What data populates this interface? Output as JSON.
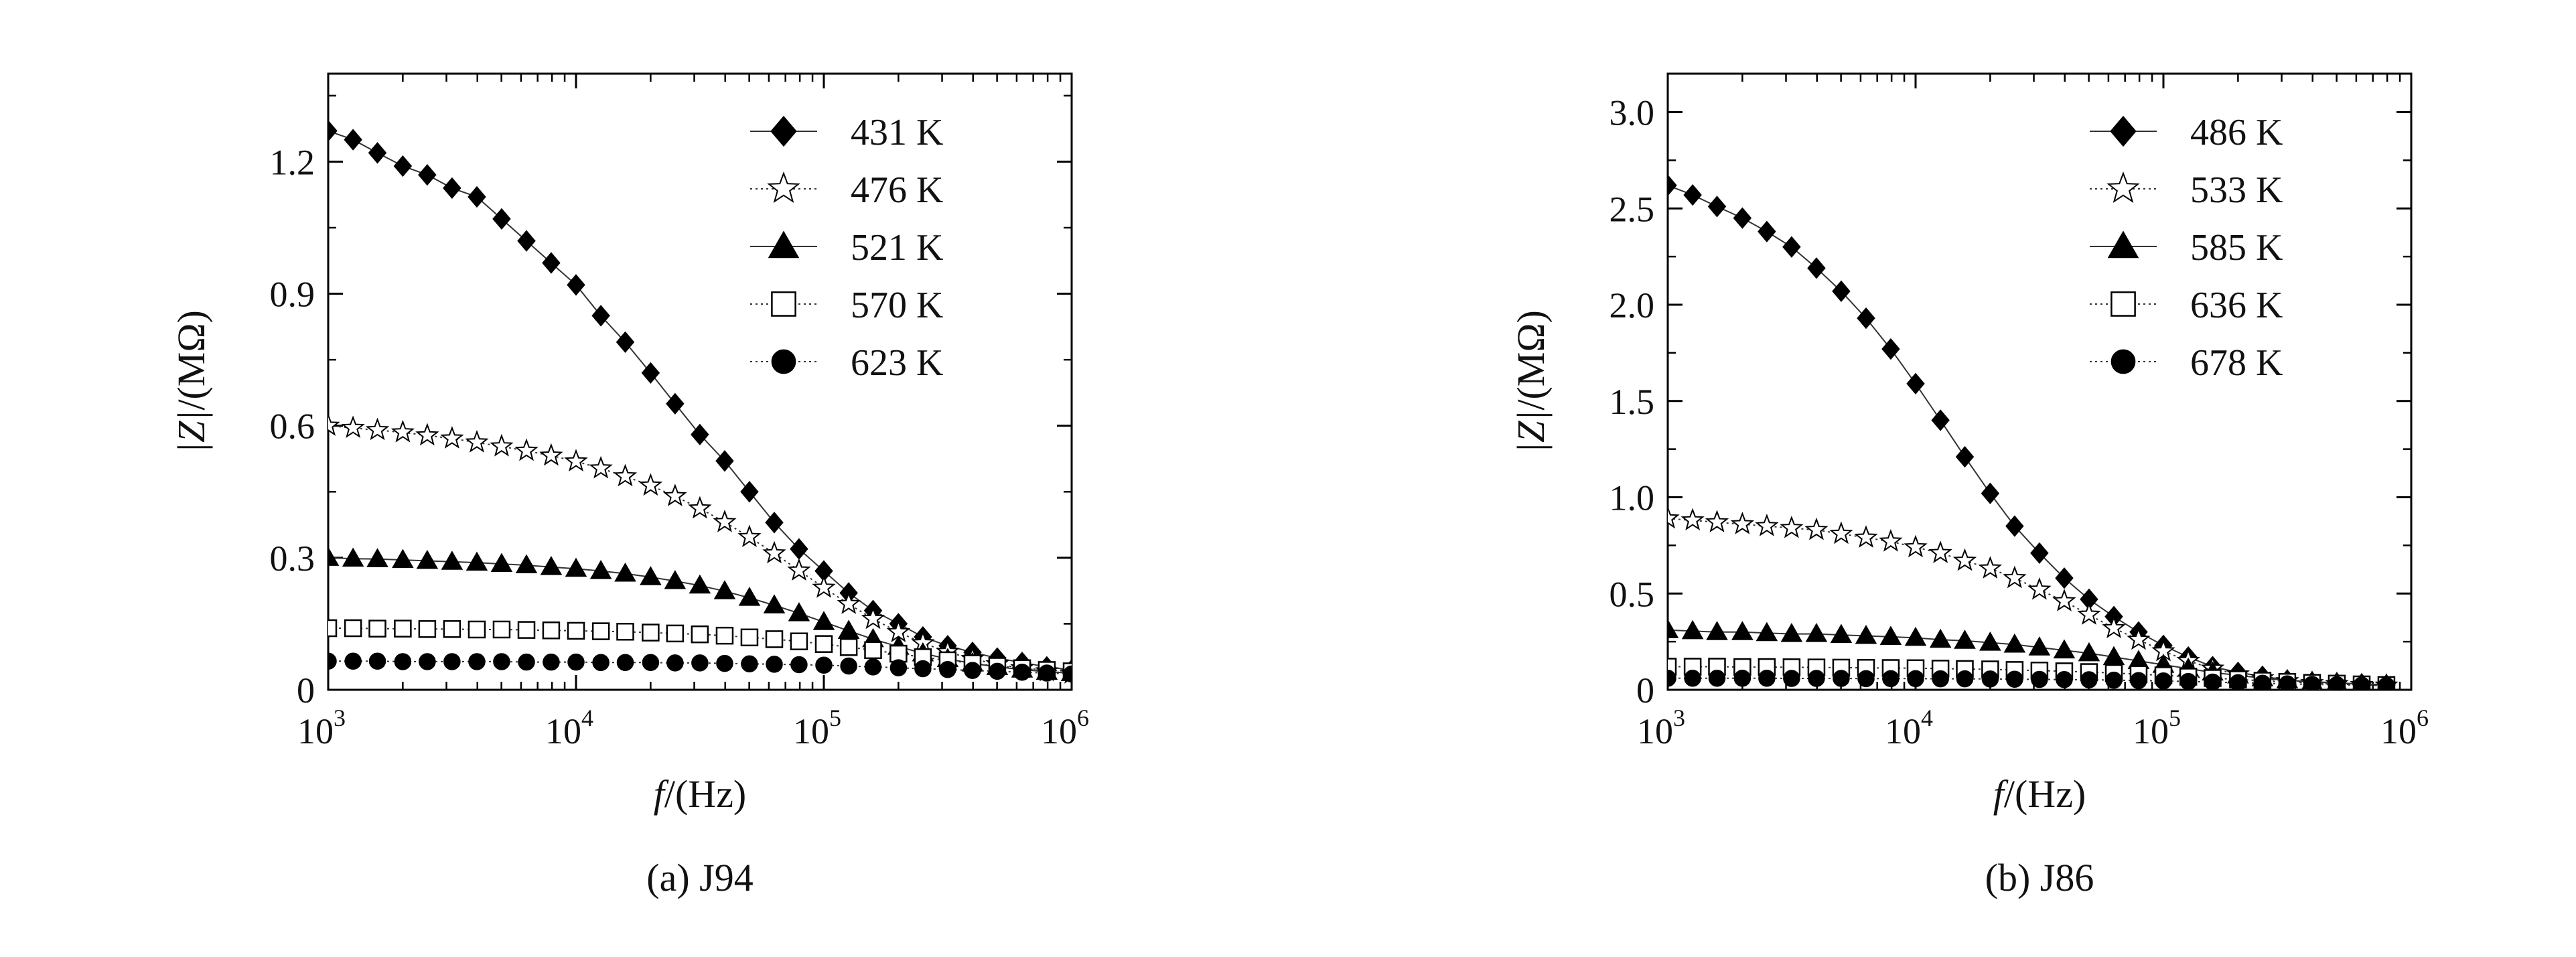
{
  "figure": {
    "panels": [
      {
        "caption": "(a) J94"
      },
      {
        "caption": "(b) J86"
      }
    ]
  },
  "chart_data": [
    {
      "type": "line",
      "caption": "(a) J94",
      "xlabel_italic": "f",
      "xlabel_unit": "/(Hz)",
      "ylabel_italic": "|Z|",
      "ylabel_unit": "/(MΩ)",
      "x_scale": "log",
      "xlim": [
        1000,
        1000000
      ],
      "x_ticks": [
        1000,
        10000,
        100000,
        1000000
      ],
      "x_tick_labels": [
        {
          "base": "10",
          "exp": "3"
        },
        {
          "base": "10",
          "exp": "4"
        },
        {
          "base": "10",
          "exp": "5"
        },
        {
          "base": "10",
          "exp": "6"
        }
      ],
      "ylim": [
        0,
        1.4
      ],
      "y_ticks": [
        0,
        0.3,
        0.6,
        0.9,
        1.2
      ],
      "y_tick_labels": [
        "0",
        "0.3",
        "0.6",
        "0.9",
        "1.2"
      ],
      "legend_position": "top-right",
      "x": [
        1000,
        1260,
        1580,
        2000,
        2510,
        3160,
        3980,
        5010,
        6310,
        7940,
        10000,
        12600,
        15800,
        20000,
        25100,
        31600,
        39800,
        50100,
        63100,
        79400,
        100000,
        126000,
        158000,
        200000,
        251000,
        316000,
        398000,
        501000,
        631000,
        794000,
        1000000
      ],
      "series": [
        {
          "name": "431 K",
          "marker": "diamond-filled",
          "line": "solid",
          "values": [
            1.27,
            1.25,
            1.22,
            1.19,
            1.17,
            1.14,
            1.12,
            1.07,
            1.02,
            0.97,
            0.92,
            0.85,
            0.79,
            0.72,
            0.65,
            0.58,
            0.52,
            0.45,
            0.38,
            0.32,
            0.27,
            0.22,
            0.18,
            0.15,
            0.12,
            0.1,
            0.085,
            0.072,
            0.062,
            0.052,
            0.045
          ]
        },
        {
          "name": "476 K",
          "marker": "star-open",
          "line": "dotted",
          "values": [
            0.6,
            0.595,
            0.59,
            0.585,
            0.578,
            0.571,
            0.562,
            0.553,
            0.543,
            0.532,
            0.519,
            0.503,
            0.485,
            0.464,
            0.44,
            0.412,
            0.381,
            0.347,
            0.31,
            0.271,
            0.232,
            0.195,
            0.161,
            0.131,
            0.106,
            0.086,
            0.07,
            0.058,
            0.049,
            0.042,
            0.037
          ]
        },
        {
          "name": "521 K",
          "marker": "triangle-filled",
          "line": "solid",
          "values": [
            0.3,
            0.298,
            0.297,
            0.295,
            0.293,
            0.291,
            0.289,
            0.286,
            0.283,
            0.279,
            0.275,
            0.27,
            0.264,
            0.256,
            0.247,
            0.237,
            0.224,
            0.209,
            0.192,
            0.174,
            0.154,
            0.134,
            0.115,
            0.098,
            0.083,
            0.07,
            0.06,
            0.052,
            0.046,
            0.041,
            0.038
          ]
        },
        {
          "name": "570 K",
          "marker": "square-open",
          "line": "dotted",
          "values": [
            0.14,
            0.14,
            0.139,
            0.139,
            0.138,
            0.138,
            0.137,
            0.137,
            0.136,
            0.135,
            0.134,
            0.133,
            0.132,
            0.13,
            0.128,
            0.126,
            0.123,
            0.119,
            0.115,
            0.11,
            0.104,
            0.097,
            0.09,
            0.082,
            0.074,
            0.067,
            0.06,
            0.054,
            0.049,
            0.045,
            0.042
          ]
        },
        {
          "name": "623 K",
          "marker": "circle-filled",
          "line": "dotted",
          "values": [
            0.065,
            0.065,
            0.065,
            0.064,
            0.064,
            0.064,
            0.064,
            0.064,
            0.063,
            0.063,
            0.063,
            0.062,
            0.062,
            0.062,
            0.061,
            0.061,
            0.06,
            0.059,
            0.058,
            0.057,
            0.056,
            0.054,
            0.052,
            0.05,
            0.048,
            0.046,
            0.044,
            0.042,
            0.04,
            0.038,
            0.036
          ]
        }
      ]
    },
    {
      "type": "line",
      "caption": "(b) J86",
      "xlabel_italic": "f",
      "xlabel_unit": "/(Hz)",
      "ylabel_italic": "|Z|",
      "ylabel_unit": "/(MΩ)",
      "x_scale": "log",
      "xlim": [
        1000,
        1000000
      ],
      "x_ticks": [
        1000,
        10000,
        100000,
        1000000
      ],
      "x_tick_labels": [
        {
          "base": "10",
          "exp": "3"
        },
        {
          "base": "10",
          "exp": "4"
        },
        {
          "base": "10",
          "exp": "5"
        },
        {
          "base": "10",
          "exp": "6"
        }
      ],
      "ylim": [
        0,
        3.2
      ],
      "y_ticks": [
        0,
        0.5,
        1.0,
        1.5,
        2.0,
        2.5,
        3.0
      ],
      "y_tick_labels": [
        "0",
        "0.5",
        "1.0",
        "1.5",
        "2.0",
        "2.5",
        "3.0"
      ],
      "legend_position": "top-right",
      "x": [
        1000,
        1260,
        1580,
        2000,
        2510,
        3160,
        3980,
        5010,
        6310,
        7940,
        10000,
        12600,
        15800,
        20000,
        25100,
        31600,
        39800,
        50100,
        63100,
        79400,
        100000,
        126000,
        158000,
        200000,
        251000,
        316000,
        398000,
        501000,
        631000,
        794000
      ],
      "series": [
        {
          "name": "486 K",
          "marker": "diamond-filled",
          "line": "solid",
          "values": [
            2.62,
            2.57,
            2.51,
            2.45,
            2.38,
            2.3,
            2.19,
            2.07,
            1.93,
            1.77,
            1.59,
            1.4,
            1.21,
            1.02,
            0.85,
            0.71,
            0.58,
            0.47,
            0.38,
            0.3,
            0.23,
            0.17,
            0.12,
            0.09,
            0.07,
            0.05,
            0.04,
            0.035,
            0.03,
            0.025
          ]
        },
        {
          "name": "533 K",
          "marker": "star-open",
          "line": "dotted",
          "values": [
            0.89,
            0.88,
            0.87,
            0.86,
            0.85,
            0.84,
            0.83,
            0.81,
            0.79,
            0.77,
            0.74,
            0.71,
            0.67,
            0.63,
            0.58,
            0.52,
            0.46,
            0.39,
            0.32,
            0.26,
            0.2,
            0.15,
            0.11,
            0.08,
            0.06,
            0.045,
            0.035,
            0.03,
            0.025,
            0.022
          ]
        },
        {
          "name": "585 K",
          "marker": "triangle-filled",
          "line": "solid",
          "values": [
            0.31,
            0.305,
            0.3,
            0.3,
            0.295,
            0.29,
            0.29,
            0.285,
            0.28,
            0.275,
            0.27,
            0.26,
            0.255,
            0.245,
            0.235,
            0.22,
            0.205,
            0.19,
            0.17,
            0.15,
            0.13,
            0.11,
            0.09,
            0.075,
            0.06,
            0.05,
            0.042,
            0.036,
            0.03,
            0.027
          ]
        },
        {
          "name": "636 K",
          "marker": "square-open",
          "line": "dotted",
          "values": [
            0.12,
            0.12,
            0.12,
            0.118,
            0.118,
            0.117,
            0.116,
            0.115,
            0.114,
            0.113,
            0.112,
            0.11,
            0.108,
            0.106,
            0.103,
            0.1,
            0.096,
            0.092,
            0.087,
            0.081,
            0.075,
            0.068,
            0.061,
            0.054,
            0.047,
            0.041,
            0.036,
            0.032,
            0.028,
            0.025
          ]
        },
        {
          "name": "678 K",
          "marker": "circle-filled",
          "line": "dotted",
          "values": [
            0.06,
            0.06,
            0.06,
            0.06,
            0.06,
            0.059,
            0.059,
            0.059,
            0.058,
            0.058,
            0.058,
            0.057,
            0.057,
            0.056,
            0.055,
            0.054,
            0.053,
            0.052,
            0.05,
            0.048,
            0.046,
            0.043,
            0.04,
            0.037,
            0.034,
            0.031,
            0.028,
            0.026,
            0.024,
            0.022
          ]
        }
      ]
    }
  ]
}
